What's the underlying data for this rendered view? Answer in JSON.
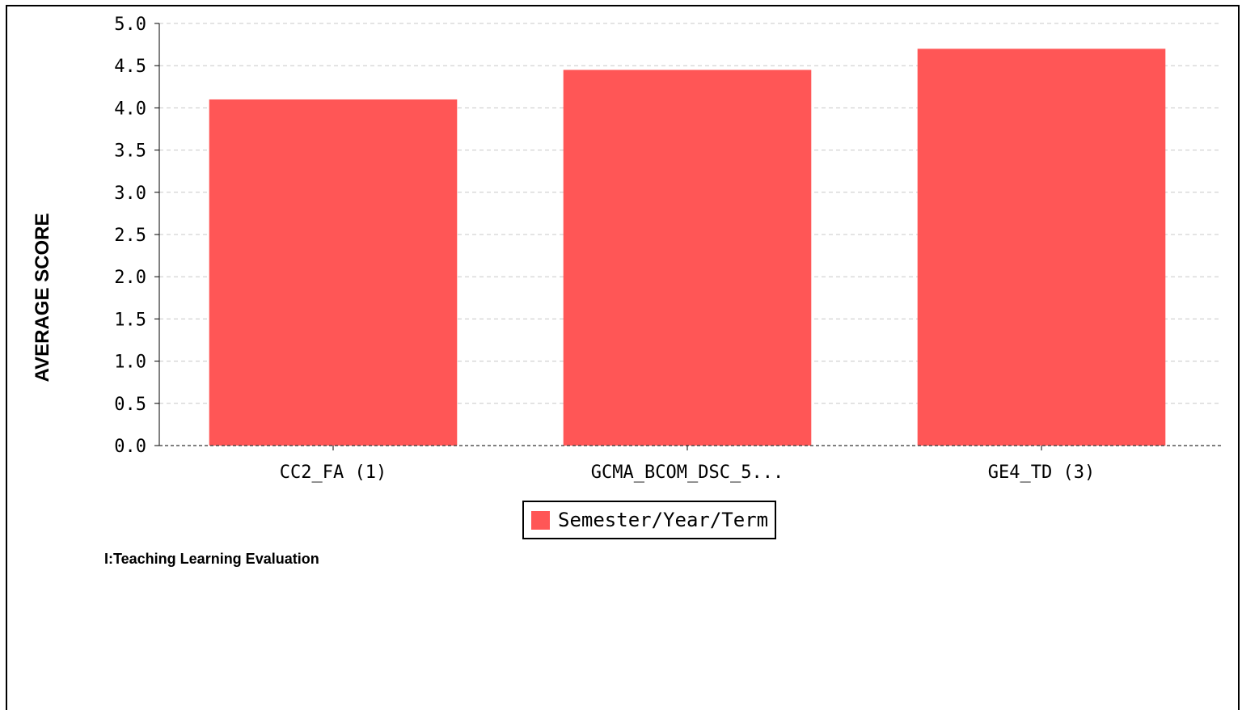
{
  "chart_data": {
    "type": "bar",
    "categories": [
      "CC2_FA (1)",
      "GCMA_BCOM_DSC_5...",
      "GE4_TD (3)"
    ],
    "series": [
      {
        "name": "Semester/Year/Term",
        "values": [
          4.1,
          4.45,
          4.7
        ]
      }
    ],
    "ylabel": "AVERAGE SCORE",
    "xlabel": "",
    "ylim": [
      0,
      5.0
    ],
    "yticks": [
      "0.0",
      "0.5",
      "1.0",
      "1.5",
      "2.0",
      "2.5",
      "3.0",
      "3.5",
      "4.0",
      "4.5",
      "5.0"
    ],
    "grid": true,
    "legend": "bottom-center",
    "bar_color": "#ff5656"
  },
  "caption": "I:Teaching Learning Evaluation"
}
